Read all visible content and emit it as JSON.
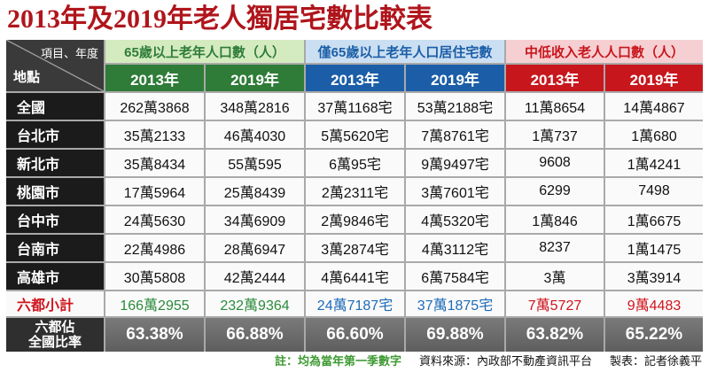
{
  "colors": {
    "title": "#b0151c",
    "group_green": "#2e7c38",
    "group_blue": "#1b5ea7",
    "group_red": "#c8161d"
  },
  "chart_data": {
    "type": "table",
    "title": "2013年及2019年老人獨居宅數比較表",
    "corner": {
      "column_header": "項目、年度",
      "row_header": "地點"
    },
    "groups": [
      {
        "name": "65歲以上老年人口數（人）",
        "years": [
          "2013年",
          "2019年"
        ]
      },
      {
        "name": "僅65歲以上老年人口居住宅數",
        "years": [
          "2013年",
          "2019年"
        ]
      },
      {
        "name": "中低收入老人人口數（人）",
        "years": [
          "2013年",
          "2019年"
        ]
      }
    ],
    "rows": [
      {
        "place": "全國",
        "values": [
          "262萬3868",
          "348萬2816",
          "37萬1168宅",
          "53萬2188宅",
          "11萬8654",
          "14萬4867"
        ]
      },
      {
        "place": "台北市",
        "values": [
          "35萬2133",
          "46萬4030",
          "5萬5620宅",
          "7萬8761宅",
          "1萬737",
          "1萬680"
        ]
      },
      {
        "place": "新北市",
        "values": [
          "35萬8434",
          "55萬595",
          "6萬95宅",
          "9萬9497宅",
          "9608",
          "1萬4241"
        ]
      },
      {
        "place": "桃園市",
        "values": [
          "17萬5964",
          "25萬8439",
          "2萬2311宅",
          "3萬7601宅",
          "6299",
          "7498"
        ]
      },
      {
        "place": "台中市",
        "values": [
          "24萬5630",
          "34萬6909",
          "2萬9846宅",
          "4萬5320宅",
          "1萬846",
          "1萬6675"
        ]
      },
      {
        "place": "台南市",
        "values": [
          "22萬4986",
          "28萬6947",
          "3萬2874宅",
          "4萬3112宅",
          "8237",
          "1萬1475"
        ]
      },
      {
        "place": "高雄市",
        "values": [
          "30萬5808",
          "42萬2444",
          "4萬6441宅",
          "6萬7584宅",
          "3萬",
          "3萬3914"
        ]
      }
    ],
    "subtotal": {
      "label": "六都小計",
      "values": [
        "166萬2955",
        "232萬9364",
        "24萬7187宅",
        "37萬1875宅",
        "7萬5727",
        "9萬4483"
      ]
    },
    "ratio": {
      "label": [
        "六都佔",
        "全國比率"
      ],
      "values": [
        "63.38%",
        "66.88%",
        "66.60%",
        "69.88%",
        "63.82%",
        "65.22%"
      ]
    }
  },
  "footer": {
    "note": "註：均為當年第一季數字",
    "source": "資料來源：內政部不動產資訊平台",
    "author": "製表：記者徐義平"
  }
}
